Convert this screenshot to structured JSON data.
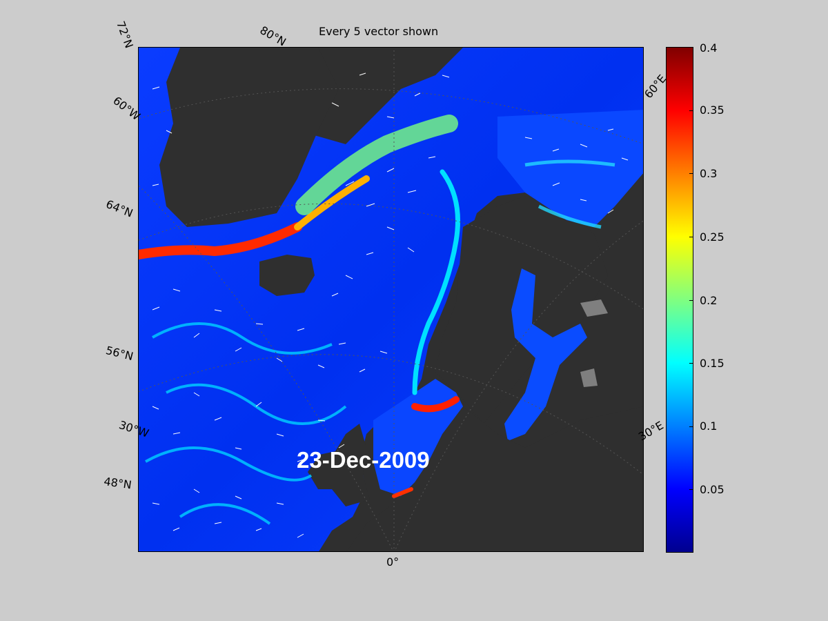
{
  "title": "Every 5 vector shown",
  "date": "23-Dec-2009",
  "lat_labels": [
    "72°N",
    "80°N",
    "60°W",
    "64°N",
    "56°N",
    "30°W",
    "48°N"
  ],
  "lon_labels": [
    "0°",
    "60°E",
    "30°E"
  ],
  "colorbar": {
    "ticks": [
      "0.4",
      "0.35",
      "0.3",
      "0.25",
      "0.2",
      "0.15",
      "0.1",
      "0.05"
    ],
    "min": 0,
    "max": 0.4,
    "colormap": "jet"
  },
  "colors": {
    "background": "#cccccc",
    "land": "#2f2f2f",
    "ice": "#7f7f7f",
    "ocean_low": "#0000ff",
    "vectors": "#ffffff"
  }
}
